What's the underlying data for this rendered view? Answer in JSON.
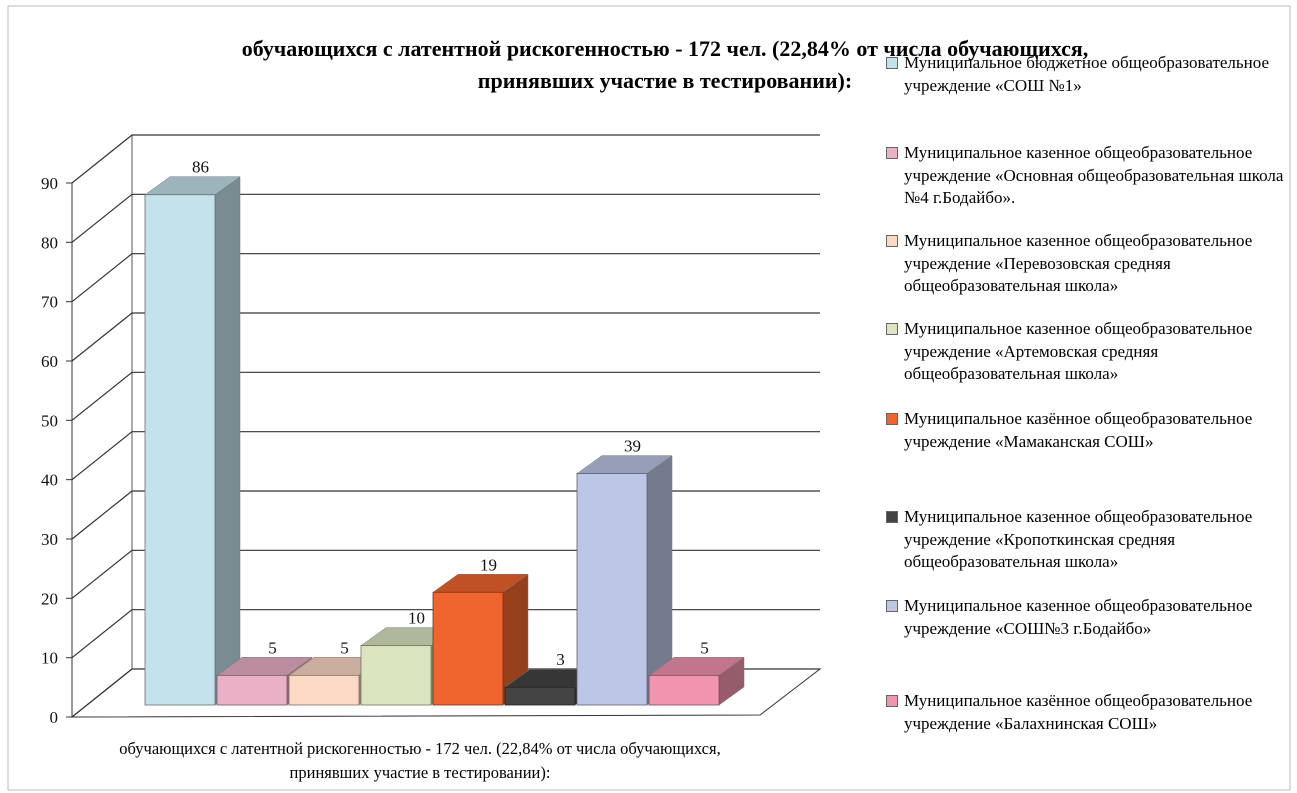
{
  "chart_data": {
    "type": "bar3d",
    "title": [
      "обучающихся с латентной рискогенностью - 172 чел. (22,84% от числа обучающихся,",
      "принявших участие в тестировании):"
    ],
    "categories": [
      "обучающихся с латентной рискогенностью - 172 чел. (22,84% от числа обучающихся, принявших участие в тестировании):"
    ],
    "series": [
      {
        "name": "Муниципальное бюджетное общеобразовательное учреждение «СОШ №1»",
        "color": "#c3e2ec",
        "values": [
          86
        ]
      },
      {
        "name": "Муниципальное казенное общеобразовательное  учреждение «Основная общеобразовательная школа №4 г.Бодайбо».",
        "color": "#eab0c6",
        "values": [
          5
        ]
      },
      {
        "name": "Муниципальное казенное общеобразовательное учреждение «Перевозовская средняя общеобразовательная школа»",
        "color": "#fbd9c4",
        "values": [
          5
        ]
      },
      {
        "name": "Муниципальное казенное общеобразовательное учреждение «Артемовская средняя общеобразовательная школа»",
        "color": "#dbe6c0",
        "values": [
          10
        ]
      },
      {
        "name": "Муниципальное казённое общеобразовательное учреждение «Мамаканская СОШ»",
        "color": "#f0652e",
        "values": [
          19
        ]
      },
      {
        "name": "Муниципальное казенное общеобразовательное учреждение «Кропоткинская  средняя общеобразовательная школа»",
        "color": "#444444",
        "values": [
          3
        ]
      },
      {
        "name": "Муниципальное казенное общеобразовательное учреждение «СОШ№3 г.Бодайбо»",
        "color": "#bcc6e6",
        "values": [
          39
        ]
      },
      {
        "name": "Муниципальное казённое общеобразовательное учреждение «Балахнинская СОШ»",
        "color": "#f294ae",
        "values": [
          5
        ]
      }
    ],
    "ylim": [
      0,
      90
    ],
    "yticks": [
      0,
      10,
      20,
      30,
      40,
      50,
      60,
      70,
      80,
      90
    ],
    "grid": true,
    "legend": "right"
  }
}
